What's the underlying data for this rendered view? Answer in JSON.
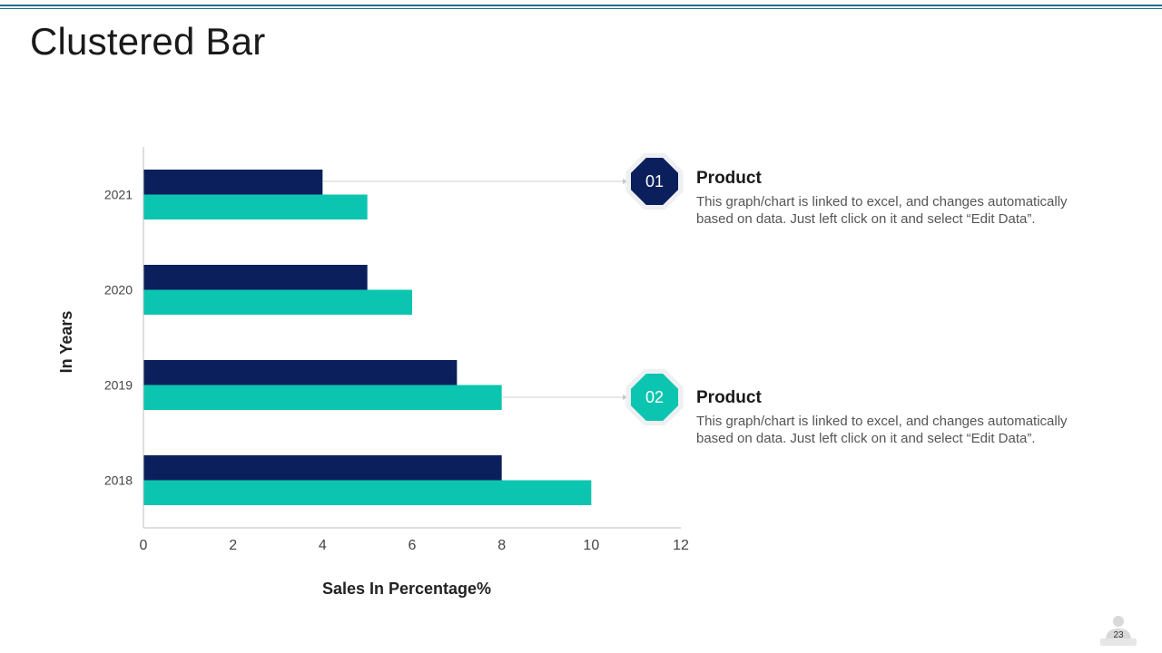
{
  "slide": {
    "title": "Clustered Bar",
    "page_number": "23"
  },
  "colors": {
    "series_1": "#0b1f5c",
    "series_2": "#0cc5b0",
    "axis": "#bfbfbf",
    "connector": "#d0d0d0"
  },
  "chart_data": {
    "type": "bar",
    "orientation": "horizontal",
    "categories": [
      "2018",
      "2019",
      "2020",
      "2021"
    ],
    "series": [
      {
        "name": "Product 01",
        "values": [
          8,
          7,
          5,
          4
        ]
      },
      {
        "name": "Product 02",
        "values": [
          10,
          8,
          6,
          5
        ]
      }
    ],
    "xlabel": "Sales In Percentage%",
    "ylabel": "In Years",
    "xlim": [
      0,
      12
    ],
    "xticks": [
      0,
      2,
      4,
      6,
      8,
      10,
      12
    ],
    "legend": "none",
    "grid": false
  },
  "callouts": [
    {
      "number": "01",
      "heading": "Product",
      "text": "This graph/chart is linked to excel, and changes automatically based on data. Just left click on it and select “Edit Data”."
    },
    {
      "number": "02",
      "heading": "Product",
      "text": "This graph/chart is linked to excel, and changes automatically based on data. Just left click on it and select “Edit Data”."
    }
  ]
}
